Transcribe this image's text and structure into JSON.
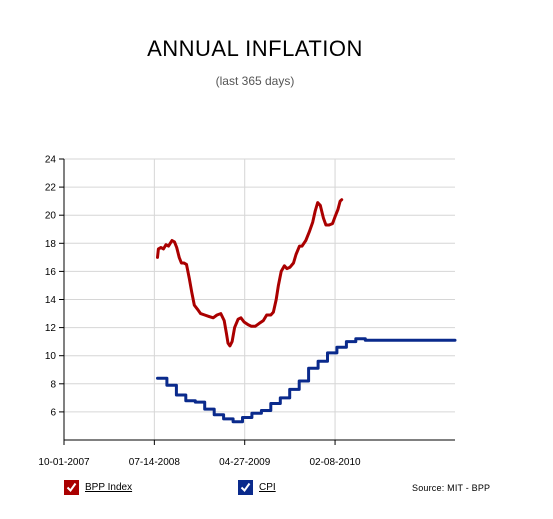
{
  "chart_data": {
    "type": "line",
    "title": "ANNUAL INFLATION",
    "subtitle": "(last 365 days)",
    "source": "Source: MIT - BPP",
    "ylim": [
      4,
      24
    ],
    "yticks": [
      6,
      8,
      10,
      12,
      14,
      16,
      18,
      20,
      22,
      24
    ],
    "xlim": [
      "2007-10-01",
      "2011-02-24"
    ],
    "xticks": [
      "10-01-2007",
      "07-14-2008",
      "04-27-2009",
      "02-08-2010"
    ],
    "grid": true,
    "legend_position": "bottom",
    "series": [
      {
        "name": "BPP Index",
        "color": "#aa0000",
        "points": [
          [
            "2008-07-24",
            17.0
          ],
          [
            "2008-07-27",
            17.6
          ],
          [
            "2008-08-04",
            17.7
          ],
          [
            "2008-08-12",
            17.6
          ],
          [
            "2008-08-20",
            17.9
          ],
          [
            "2008-08-28",
            17.8
          ],
          [
            "2008-09-08",
            18.2
          ],
          [
            "2008-09-16",
            18.1
          ],
          [
            "2008-09-23",
            17.7
          ],
          [
            "2008-10-01",
            17.0
          ],
          [
            "2008-10-08",
            16.6
          ],
          [
            "2008-10-16",
            16.6
          ],
          [
            "2008-10-24",
            16.5
          ],
          [
            "2008-11-02",
            15.5
          ],
          [
            "2008-11-10",
            14.5
          ],
          [
            "2008-11-18",
            13.6
          ],
          [
            "2008-11-28",
            13.3
          ],
          [
            "2008-12-08",
            13.0
          ],
          [
            "2008-12-21",
            12.9
          ],
          [
            "2009-01-03",
            12.8
          ],
          [
            "2009-01-17",
            12.7
          ],
          [
            "2009-01-29",
            12.9
          ],
          [
            "2009-02-10",
            13.0
          ],
          [
            "2009-02-21",
            12.5
          ],
          [
            "2009-02-28",
            11.6
          ],
          [
            "2009-03-05",
            10.9
          ],
          [
            "2009-03-11",
            10.7
          ],
          [
            "2009-03-18",
            11.0
          ],
          [
            "2009-03-26",
            12.0
          ],
          [
            "2009-04-06",
            12.6
          ],
          [
            "2009-04-15",
            12.7
          ],
          [
            "2009-04-25",
            12.4
          ],
          [
            "2009-05-08",
            12.2
          ],
          [
            "2009-05-18",
            12.1
          ],
          [
            "2009-05-31",
            12.1
          ],
          [
            "2009-06-12",
            12.3
          ],
          [
            "2009-06-25",
            12.5
          ],
          [
            "2009-07-06",
            12.9
          ],
          [
            "2009-07-19",
            12.9
          ],
          [
            "2009-07-27",
            13.1
          ],
          [
            "2009-08-05",
            14.0
          ],
          [
            "2009-08-12",
            15.0
          ],
          [
            "2009-08-21",
            16.0
          ],
          [
            "2009-08-31",
            16.4
          ],
          [
            "2009-09-08",
            16.2
          ],
          [
            "2009-09-18",
            16.3
          ],
          [
            "2009-09-29",
            16.6
          ],
          [
            "2009-10-07",
            17.2
          ],
          [
            "2009-10-18",
            17.8
          ],
          [
            "2009-10-26",
            17.8
          ],
          [
            "2009-11-07",
            18.2
          ],
          [
            "2009-11-18",
            18.8
          ],
          [
            "2009-11-29",
            19.5
          ],
          [
            "2009-12-07",
            20.3
          ],
          [
            "2009-12-15",
            20.9
          ],
          [
            "2009-12-23",
            20.7
          ],
          [
            "2010-01-02",
            19.8
          ],
          [
            "2010-01-10",
            19.3
          ],
          [
            "2010-01-20",
            19.3
          ],
          [
            "2010-01-31",
            19.4
          ],
          [
            "2010-02-08",
            19.9
          ],
          [
            "2010-02-17",
            20.4
          ],
          [
            "2010-02-24",
            21.0
          ],
          [
            "2010-03-01",
            21.1
          ]
        ]
      },
      {
        "name": "CPI",
        "color": "#0a2a8c",
        "step": true,
        "points": [
          [
            "2008-07-24",
            8.4
          ],
          [
            "2008-08-23",
            7.9
          ],
          [
            "2008-09-22",
            7.2
          ],
          [
            "2008-10-22",
            6.8
          ],
          [
            "2008-11-21",
            6.7
          ],
          [
            "2008-12-21",
            6.2
          ],
          [
            "2009-01-20",
            5.8
          ],
          [
            "2009-02-19",
            5.5
          ],
          [
            "2009-03-21",
            5.3
          ],
          [
            "2009-04-20",
            5.6
          ],
          [
            "2009-05-20",
            5.9
          ],
          [
            "2009-06-19",
            6.1
          ],
          [
            "2009-07-19",
            6.6
          ],
          [
            "2009-08-18",
            7.0
          ],
          [
            "2009-09-17",
            7.6
          ],
          [
            "2009-10-17",
            8.2
          ],
          [
            "2009-11-16",
            9.1
          ],
          [
            "2009-12-16",
            9.6
          ],
          [
            "2010-01-15",
            10.2
          ],
          [
            "2010-02-14",
            10.6
          ],
          [
            "2010-03-16",
            11.0
          ],
          [
            "2010-04-15",
            11.2
          ],
          [
            "2010-05-15",
            11.1
          ],
          [
            "2010-06-14",
            11.1
          ],
          [
            "2010-07-14",
            11.1
          ],
          [
            "2010-08-13",
            11.1
          ],
          [
            "2010-09-12",
            11.1
          ],
          [
            "2010-10-12",
            11.1
          ],
          [
            "2010-11-11",
            11.1
          ],
          [
            "2010-12-11",
            11.1
          ],
          [
            "2011-01-10",
            11.1
          ],
          [
            "2011-02-09",
            11.1
          ],
          [
            "2011-02-24",
            11.1
          ]
        ]
      }
    ]
  }
}
